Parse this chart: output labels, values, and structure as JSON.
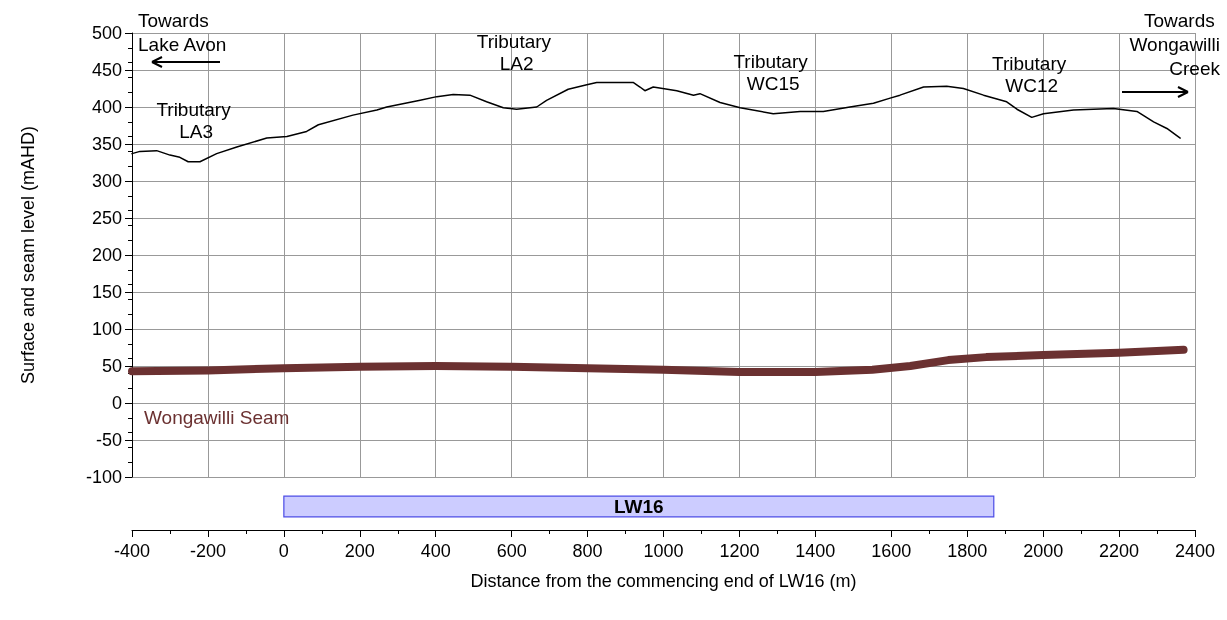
{
  "chart_data": [
    {
      "type": "line",
      "xlabel": "Distance from the commencing end of LW16 (m)",
      "ylabel": "Surface and seam level (mAHD)",
      "xlim": [
        -400,
        2400
      ],
      "xticks": [
        -400,
        -200,
        0,
        200,
        400,
        600,
        800,
        1000,
        1200,
        1400,
        1600,
        1800,
        2000,
        2200,
        2400
      ],
      "ylim": [
        -100,
        500
      ],
      "yticks": [
        -100,
        -50,
        0,
        50,
        100,
        150,
        200,
        250,
        300,
        350,
        400,
        450,
        500
      ],
      "grid": true,
      "legend": false,
      "marker": "none",
      "series": [
        {
          "color": "#000000",
          "x": [
            -400,
            -379,
            -335,
            -300,
            -274,
            -252,
            -221,
            -177,
            -124,
            -45,
            8,
            60,
            91,
            182,
            245,
            271,
            359,
            403,
            446,
            490,
            534,
            578,
            613,
            666,
            692,
            749,
            798,
            824,
            921,
            938,
            951,
            973,
            1035,
            1079,
            1096,
            1149,
            1202,
            1289,
            1360,
            1421,
            1491,
            1553,
            1597,
            1623,
            1685,
            1746,
            1790,
            1843,
            1904,
            1931,
            1970,
            2001,
            2080,
            2185,
            2247,
            2291,
            2326,
            2361
          ],
          "values": [
            337,
            340,
            341,
            335,
            332,
            326,
            326,
            337,
            346,
            358,
            360,
            367,
            376,
            389,
            396,
            400,
            409,
            414,
            417,
            416,
            407,
            399,
            397,
            400,
            409,
            424,
            430,
            433,
            433,
            427,
            422,
            427,
            422,
            416,
            418,
            406,
            399,
            391,
            394,
            394,
            400,
            405,
            412,
            416,
            427,
            428,
            425,
            416,
            407,
            397,
            386,
            391,
            396,
            398,
            394,
            380,
            371,
            358
          ]
        },
        {
          "name": "Wongawilli Seam",
          "color": "#6b3131",
          "x": [
            -400,
            -200,
            0,
            200,
            400,
            600,
            800,
            1000,
            1200,
            1400,
            1550,
            1650,
            1750,
            1850,
            2000,
            2200,
            2370
          ],
          "values": [
            43,
            44,
            47,
            49,
            50,
            49,
            47,
            45,
            42,
            42,
            45,
            50,
            58,
            62,
            65,
            68,
            72
          ]
        }
      ],
      "annotations": [
        "Towards Lake Avon",
        "Towards Wongawilli Creek",
        {
          "text": "Tributary LA3",
          "x": -252,
          "y": 326
        },
        {
          "text": "Tributary LA2",
          "x": 613,
          "y": 397
        },
        {
          "text": "Tributary WC15",
          "x": 1289,
          "y": 391
        },
        {
          "text": "Tributary WC12",
          "x": 1970,
          "y": 386
        }
      ]
    },
    {
      "type": "bar",
      "orientation": "horizontal",
      "categories": [
        "LW16"
      ],
      "base": [
        0
      ],
      "values": [
        1870
      ],
      "color": "#ccccff",
      "xlim": [
        -400,
        2400
      ],
      "tick_labels": false
    }
  ]
}
